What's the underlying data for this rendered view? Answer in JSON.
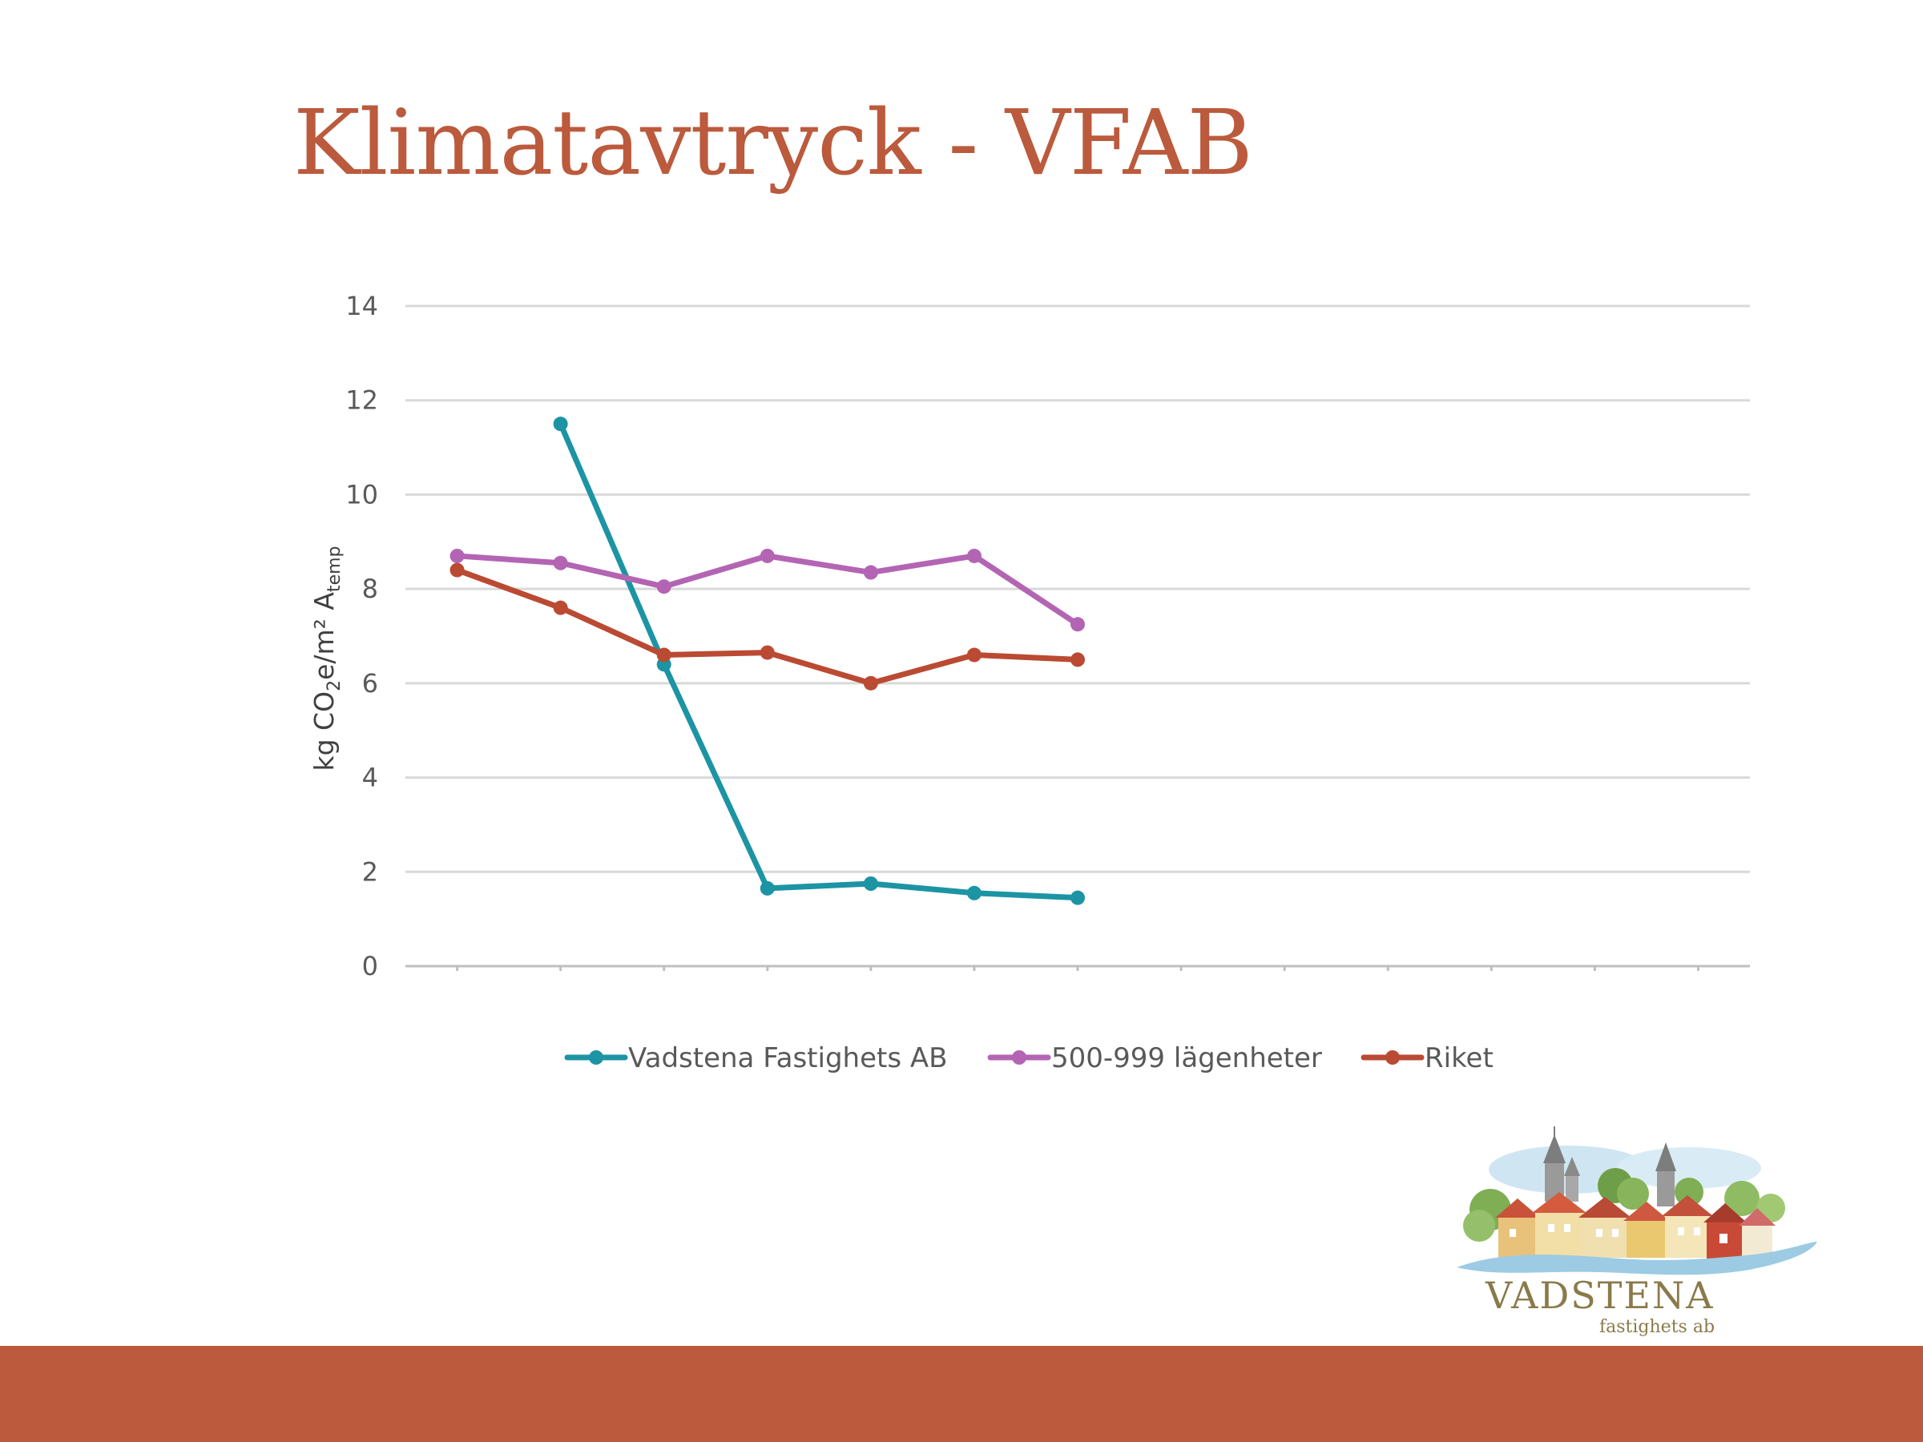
{
  "slide": {
    "title": "Klimatavtryck - VFAB"
  },
  "colors": {
    "title": "#bb5a3c",
    "footer": "#bb5a3c",
    "grid": "#d9d9d9",
    "tick_text": "#595959"
  },
  "chart_data": {
    "type": "line",
    "title": "",
    "xlabel": "",
    "ylabel": "kg CO",
    "ylabel_sub": "2",
    "ylabel_mid": "e/m² A",
    "ylabel_sub2": "temp",
    "ylim": [
      0,
      14
    ],
    "yticks": [
      0,
      2,
      4,
      6,
      8,
      10,
      12,
      14
    ],
    "x_slots": 13,
    "grid": true,
    "legend_position": "bottom",
    "series": [
      {
        "name": "Vadstena Fastighets AB",
        "color": "#1c94a4",
        "values": [
          null,
          11.5,
          6.4,
          1.65,
          1.75,
          1.55,
          1.45
        ]
      },
      {
        "name": "500-999 lägenheter",
        "color": "#b365b3",
        "values": [
          8.7,
          8.55,
          8.05,
          8.7,
          8.35,
          8.7,
          7.25
        ]
      },
      {
        "name": "Riket",
        "color": "#bb4a33",
        "values": [
          8.4,
          7.6,
          6.6,
          6.65,
          6.0,
          6.6,
          6.5
        ]
      }
    ]
  },
  "logo": {
    "name": "VADSTENA",
    "subtitle": "fastighets ab"
  }
}
